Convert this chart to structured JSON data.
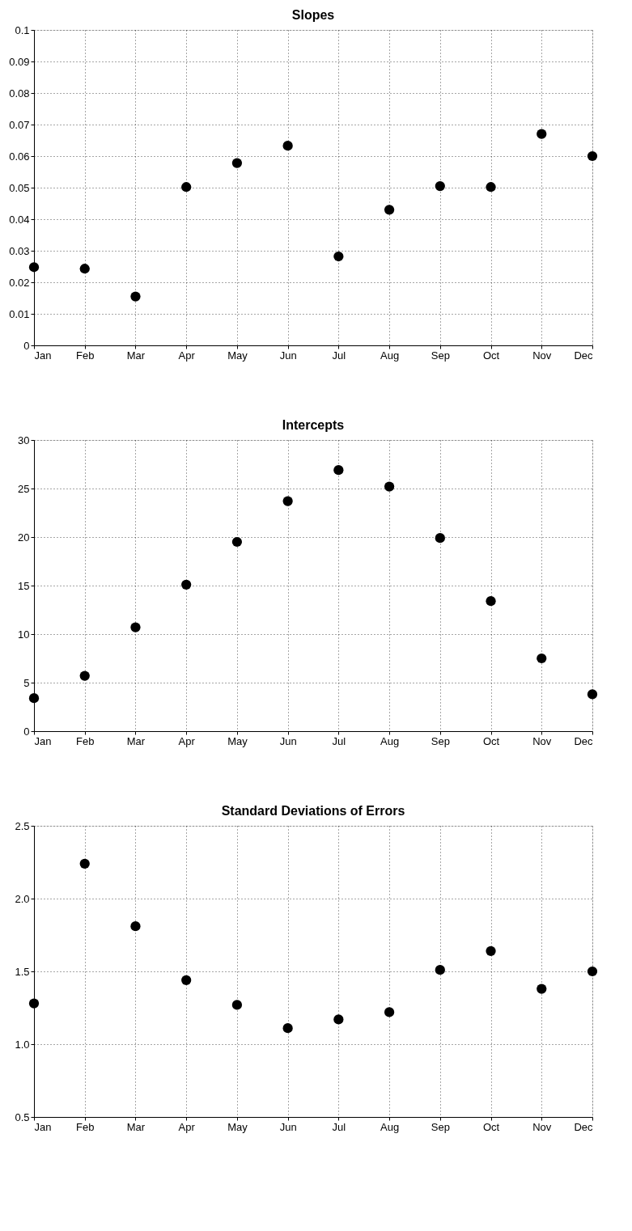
{
  "chart_data": [
    {
      "type": "scatter",
      "title": "Slopes",
      "categories": [
        "Jan",
        "Feb",
        "Mar",
        "Apr",
        "May",
        "Jun",
        "Jul",
        "Aug",
        "Sep",
        "Oct",
        "Nov",
        "Dec"
      ],
      "series": [
        {
          "color": "#000000",
          "values": [
            0.0248,
            0.0243,
            0.0155,
            0.0502,
            0.0578,
            0.0633,
            0.0282,
            0.043,
            0.0505,
            0.0502,
            0.067,
            0.06
          ]
        }
      ],
      "ylim": [
        0,
        0.1
      ],
      "yticks": [
        0,
        0.01,
        0.02,
        0.03,
        0.04,
        0.05,
        0.06,
        0.07,
        0.08,
        0.09,
        0.1
      ],
      "grid": true,
      "marker": "circle"
    },
    {
      "type": "scatter",
      "title": "Intercepts",
      "categories": [
        "Jan",
        "Feb",
        "Mar",
        "Apr",
        "May",
        "Jun",
        "Jul",
        "Aug",
        "Sep",
        "Oct",
        "Nov",
        "Dec"
      ],
      "series": [
        {
          "color": "#000000",
          "values": [
            3.4,
            5.7,
            10.7,
            15.1,
            19.5,
            23.7,
            26.9,
            25.2,
            19.9,
            13.4,
            7.5,
            3.8
          ]
        }
      ],
      "ylim": [
        0,
        30
      ],
      "yticks": [
        0,
        5,
        10,
        15,
        20,
        25,
        30
      ],
      "grid": true,
      "marker": "circle"
    },
    {
      "type": "scatter",
      "title": "Standard Deviations of Errors",
      "categories": [
        "Jan",
        "Feb",
        "Mar",
        "Apr",
        "May",
        "Jun",
        "Jul",
        "Aug",
        "Sep",
        "Oct",
        "Nov",
        "Dec"
      ],
      "series": [
        {
          "color": "#000000",
          "values": [
            1.28,
            2.24,
            1.81,
            1.44,
            1.27,
            1.11,
            1.17,
            1.22,
            1.51,
            1.64,
            1.38,
            1.5
          ]
        }
      ],
      "ylim": [
        0.5,
        2.5
      ],
      "yticks": [
        {
          "value": 0.5,
          "label": "0.5"
        },
        {
          "value": 1,
          "label": "1.0"
        },
        {
          "value": 1.5,
          "label": "1.5"
        },
        {
          "value": 2,
          "label": "2.0"
        },
        {
          "value": 2.5,
          "label": "2.5"
        }
      ],
      "grid": true,
      "marker": "circle"
    }
  ]
}
